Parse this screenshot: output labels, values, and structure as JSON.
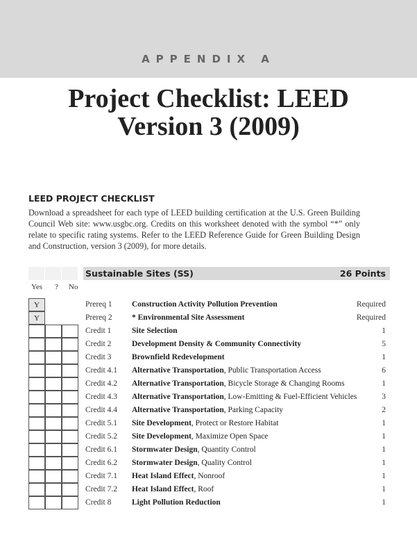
{
  "header": {
    "appendix": "APPENDIX A",
    "title_line1": "Project Checklist: LEED",
    "title_line2": "Version 3 (2009)"
  },
  "section": {
    "heading": "LEED PROJECT CHECKLIST",
    "intro": "Download a spreadsheet for each type of LEED building certification at the U.S. Green Building Council Web site: www.usgbc.org. Credits on this worksheet denoted with the symbol “*” only relate to specific rating systems. Refer to the LEED Reference Guide for Green Building Design and Construction, version 3 (2009), for more details."
  },
  "table": {
    "category": "Sustainable Sites (SS)",
    "category_points": "26 Points",
    "columns": [
      "Yes",
      "?",
      "No"
    ],
    "rows": [
      {
        "type": "prereq",
        "yes": "Y",
        "label": "Prereq 1",
        "title": "Construction Activity Pollution Prevention",
        "detail": "",
        "points": "Required"
      },
      {
        "type": "prereq",
        "yes": "Y",
        "label": "Prereq 2",
        "title": "* Environmental Site Assessment",
        "detail": "",
        "points": "Required"
      },
      {
        "type": "credit",
        "label": "Credit 1",
        "title": "Site Selection",
        "detail": "",
        "points": "1"
      },
      {
        "type": "credit",
        "label": "Credit 2",
        "title": "Development Density & Community Connectivity",
        "detail": "",
        "points": "5"
      },
      {
        "type": "credit",
        "label": "Credit 3",
        "title": "Brownfield Redevelopment",
        "detail": "",
        "points": "1"
      },
      {
        "type": "credit",
        "label": "Credit 4.1",
        "title": "Alternative Transportation",
        "detail": ", Public Transportation Access",
        "points": "6"
      },
      {
        "type": "credit",
        "label": "Credit 4.2",
        "title": "Alternative Transportation",
        "detail": ", Bicycle Storage & Changing Rooms",
        "points": "1"
      },
      {
        "type": "credit",
        "label": "Credit 4.3",
        "title": "Alternative Transportation",
        "detail": ", Low-Emitting & Fuel-Efficient Vehicles",
        "points": "3"
      },
      {
        "type": "credit",
        "label": "Credit 4.4",
        "title": "Alternative Transportation",
        "detail": ", Parking Capacity",
        "points": "2"
      },
      {
        "type": "credit",
        "label": "Credit 5.1",
        "title": "Site Development",
        "detail": ", Protect or Restore Habitat",
        "points": "1"
      },
      {
        "type": "credit",
        "label": "Credit 5.2",
        "title": "Site Development",
        "detail": ", Maximize Open Space",
        "points": "1"
      },
      {
        "type": "credit",
        "label": "Credit 6.1",
        "title": "Stormwater Design",
        "detail": ", Quantity Control",
        "points": "1"
      },
      {
        "type": "credit",
        "label": "Credit 6.2",
        "title": "Stormwater Design",
        "detail": ", Quality Control",
        "points": "1"
      },
      {
        "type": "credit",
        "label": "Credit 7.1",
        "title": "Heat Island Effect",
        "detail": ", Nonroof",
        "points": "1"
      },
      {
        "type": "credit",
        "label": "Credit 7.2",
        "title": "Heat Island Effect",
        "detail": ", Roof",
        "points": "1"
      },
      {
        "type": "credit",
        "label": "Credit 8",
        "title": "Light Pollution Reduction",
        "detail": "",
        "points": "1"
      }
    ]
  }
}
